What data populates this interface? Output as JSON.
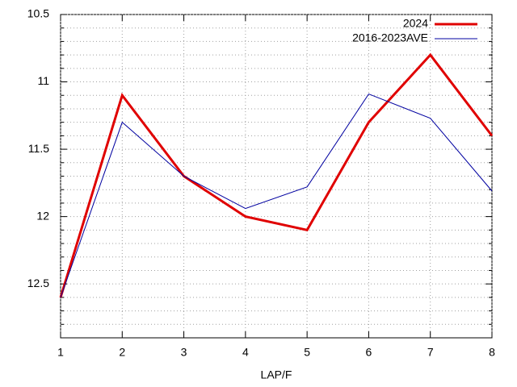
{
  "chart_data": {
    "type": "line",
    "xlabel": "LAP/F",
    "x": [
      1,
      2,
      3,
      4,
      5,
      6,
      7,
      8
    ],
    "series": [
      {
        "name": "2024",
        "color": "#e00000",
        "width": 3,
        "values": [
          12.6,
          11.1,
          11.7,
          12.0,
          12.1,
          11.3,
          10.8,
          11.4
        ]
      },
      {
        "name": "2016-2023AVE",
        "color": "#0000a0",
        "width": 1,
        "values": [
          12.6,
          11.3,
          11.7,
          11.94,
          11.78,
          11.09,
          11.27,
          11.81
        ]
      }
    ],
    "xlim": [
      1,
      8
    ],
    "xticks": [
      1,
      2,
      3,
      4,
      5,
      6,
      7,
      8
    ],
    "ylim": [
      10.5,
      12.9
    ],
    "y_reversed": true,
    "yticks": [
      10.5,
      11,
      11.5,
      12,
      12.5
    ],
    "yminorticks": [
      10.6,
      10.7,
      10.8,
      10.9,
      11.1,
      11.2,
      11.3,
      11.4,
      11.6,
      11.7,
      11.8,
      11.9,
      12.1,
      12.2,
      12.3,
      12.4,
      12.6,
      12.7,
      12.8
    ],
    "grid": true,
    "legend": "top-right"
  }
}
